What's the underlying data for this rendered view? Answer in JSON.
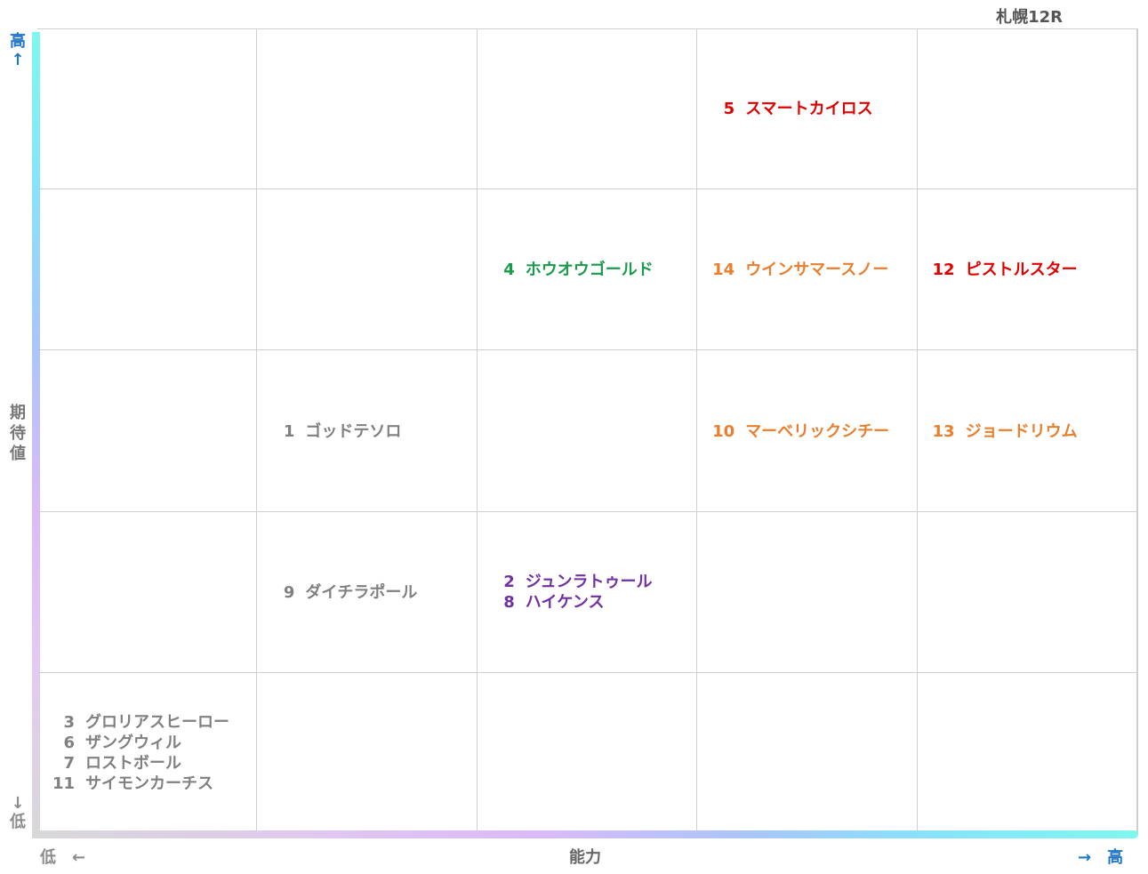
{
  "venue": "札幌12R",
  "axis": {
    "y_title": [
      "期",
      "待",
      "値"
    ],
    "y_high": [
      "高",
      "↑"
    ],
    "y_low": [
      "↓",
      "低"
    ],
    "x_title": "能力",
    "x_low": "低　←",
    "x_high": "→　高"
  },
  "colors": {
    "red": "#e00000",
    "orange": "#e87f2f",
    "green": "#1a9a4a",
    "gray": "#808080",
    "purple": "#7030a0"
  },
  "chart_data": {
    "type": "table",
    "x_axis": "能力",
    "y_axis": "期待値",
    "columns": 5,
    "rows": 5,
    "cells": [
      {
        "col": 4,
        "row": 1,
        "color": "red",
        "horses": [
          {
            "num": "5",
            "name": "スマートカイロス"
          }
        ]
      },
      {
        "col": 3,
        "row": 2,
        "color": "green",
        "horses": [
          {
            "num": "4",
            "name": "ホウオウゴールド"
          }
        ]
      },
      {
        "col": 4,
        "row": 2,
        "color": "orange",
        "horses": [
          {
            "num": "14",
            "name": "ウインサマースノー"
          }
        ]
      },
      {
        "col": 5,
        "row": 2,
        "color": "red",
        "horses": [
          {
            "num": "12",
            "name": "ピストルスター"
          }
        ]
      },
      {
        "col": 2,
        "row": 3,
        "color": "gray",
        "horses": [
          {
            "num": "1",
            "name": "ゴッドテソロ"
          }
        ]
      },
      {
        "col": 4,
        "row": 3,
        "color": "orange",
        "horses": [
          {
            "num": "10",
            "name": "マーベリックシチー"
          }
        ]
      },
      {
        "col": 5,
        "row": 3,
        "color": "orange",
        "horses": [
          {
            "num": "13",
            "name": "ジョードリウム"
          }
        ]
      },
      {
        "col": 2,
        "row": 4,
        "color": "gray",
        "horses": [
          {
            "num": "9",
            "name": "ダイチラポール"
          }
        ]
      },
      {
        "col": 3,
        "row": 4,
        "color": "purple",
        "horses": [
          {
            "num": "2",
            "name": "ジュンラトゥール"
          },
          {
            "num": "8",
            "name": "ハイケンス"
          }
        ]
      },
      {
        "col": 1,
        "row": 5,
        "color": "gray",
        "horses": [
          {
            "num": "3",
            "name": "グロリアスヒーロー"
          },
          {
            "num": "6",
            "name": "ザングウィル"
          },
          {
            "num": "7",
            "name": "ロストボール"
          },
          {
            "num": "11",
            "name": "サイモンカーチス"
          }
        ]
      }
    ]
  }
}
